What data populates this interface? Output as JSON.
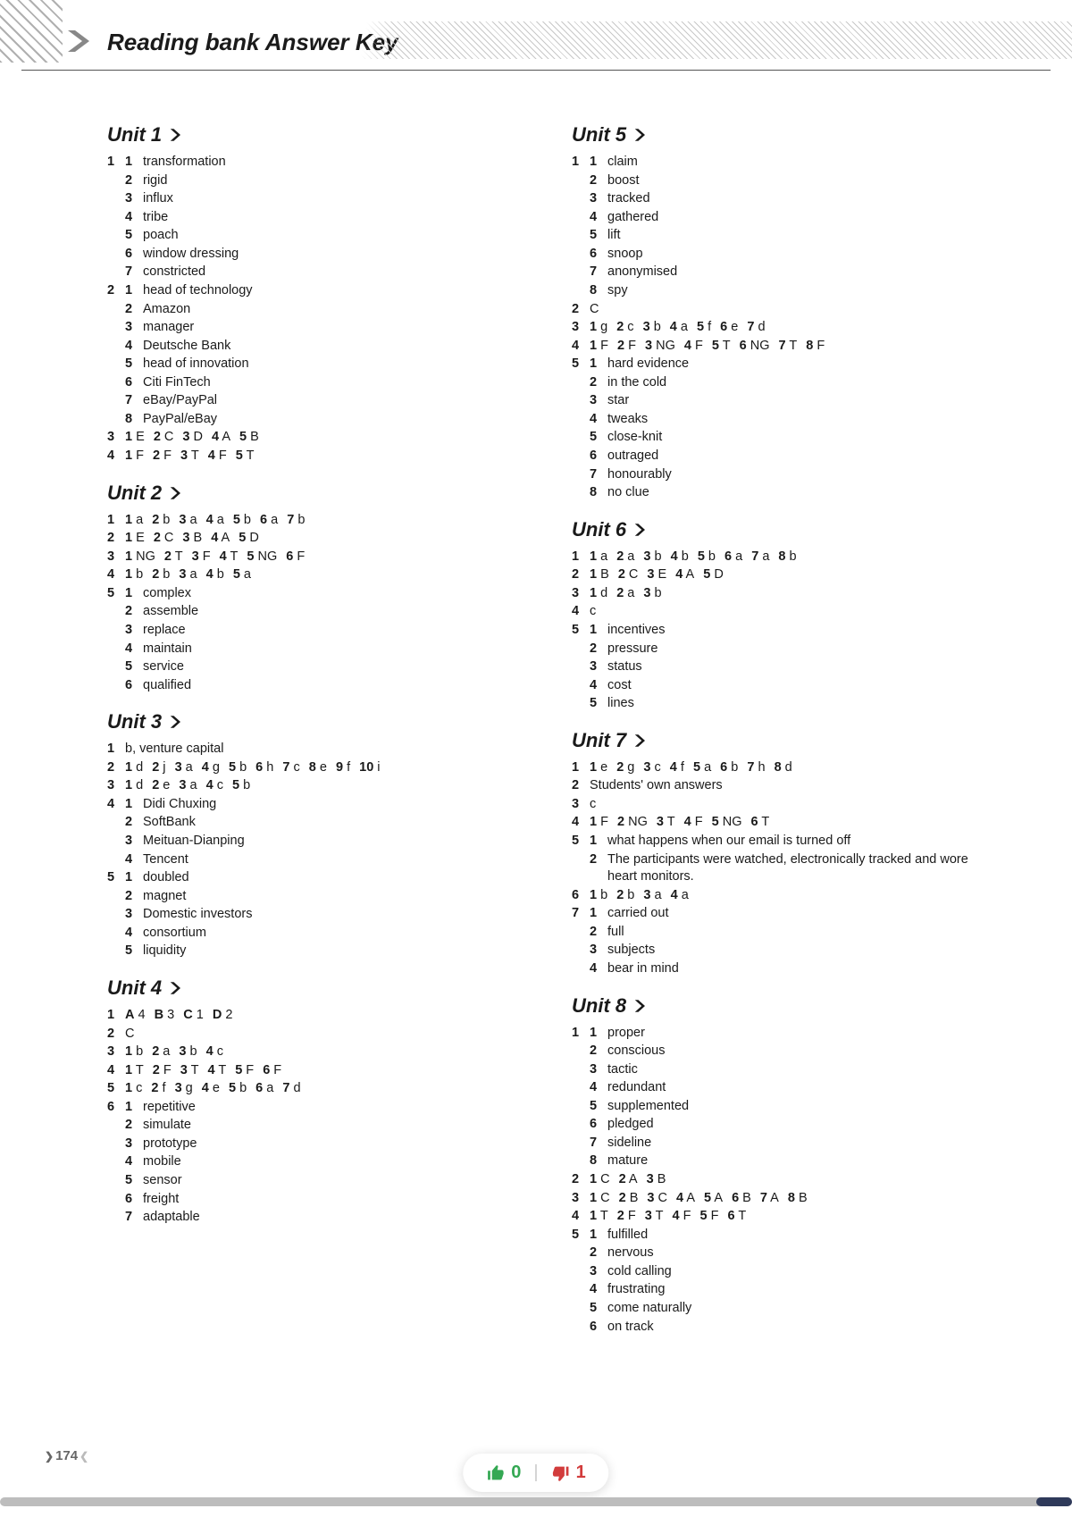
{
  "header": {
    "title": "Reading bank  Answer Key"
  },
  "pageNumber": "174",
  "floating": {
    "up": "0",
    "down": "1"
  },
  "colors": {
    "headingText": "#1a1a1a",
    "upGreen": "#34a853",
    "downRed": "#d23c3c"
  },
  "leftUnits": [
    {
      "title": "Unit 1",
      "items": [
        {
          "type": "sub",
          "q": "1",
          "rows": [
            [
              "1",
              "transformation"
            ],
            [
              "2",
              "rigid"
            ],
            [
              "3",
              "influx"
            ],
            [
              "4",
              "tribe"
            ],
            [
              "5",
              "poach"
            ],
            [
              "6",
              "window dressing"
            ],
            [
              "7",
              "constricted"
            ]
          ]
        },
        {
          "type": "sub",
          "q": "2",
          "rows": [
            [
              "1",
              "head of technology"
            ],
            [
              "2",
              "Amazon"
            ],
            [
              "3",
              "manager"
            ],
            [
              "4",
              "Deutsche Bank"
            ],
            [
              "5",
              "head of innovation"
            ],
            [
              "6",
              "Citi FinTech"
            ],
            [
              "7",
              "eBay/PayPal"
            ],
            [
              "8",
              "PayPal/eBay"
            ]
          ]
        },
        {
          "type": "inline",
          "q": "3",
          "pairs": [
            [
              "1",
              "E"
            ],
            [
              "2",
              "C"
            ],
            [
              "3",
              "D"
            ],
            [
              "4",
              "A"
            ],
            [
              "5",
              "B"
            ]
          ]
        },
        {
          "type": "inline",
          "q": "4",
          "pairs": [
            [
              "1",
              "F"
            ],
            [
              "2",
              "F"
            ],
            [
              "3",
              "T"
            ],
            [
              "4",
              "F"
            ],
            [
              "5",
              "T"
            ]
          ]
        }
      ]
    },
    {
      "title": "Unit 2",
      "items": [
        {
          "type": "inline",
          "q": "1",
          "pairs": [
            [
              "1",
              "a"
            ],
            [
              "2",
              "b"
            ],
            [
              "3",
              "a"
            ],
            [
              "4",
              "a"
            ],
            [
              "5",
              "b"
            ],
            [
              "6",
              "a"
            ],
            [
              "7",
              "b"
            ]
          ]
        },
        {
          "type": "inline",
          "q": "2",
          "pairs": [
            [
              "1",
              "E"
            ],
            [
              "2",
              "C"
            ],
            [
              "3",
              "B"
            ],
            [
              "4",
              "A"
            ],
            [
              "5",
              "D"
            ]
          ]
        },
        {
          "type": "inline",
          "q": "3",
          "pairs": [
            [
              "1",
              "NG"
            ],
            [
              "2",
              "T"
            ],
            [
              "3",
              "F"
            ],
            [
              "4",
              "T"
            ],
            [
              "5",
              "NG"
            ],
            [
              "6",
              "F"
            ]
          ]
        },
        {
          "type": "inline",
          "q": "4",
          "pairs": [
            [
              "1",
              "b"
            ],
            [
              "2",
              "b"
            ],
            [
              "3",
              "a"
            ],
            [
              "4",
              "b"
            ],
            [
              "5",
              "a"
            ]
          ]
        },
        {
          "type": "sub",
          "q": "5",
          "rows": [
            [
              "1",
              "complex"
            ],
            [
              "2",
              "assemble"
            ],
            [
              "3",
              "replace"
            ],
            [
              "4",
              "maintain"
            ],
            [
              "5",
              "service"
            ],
            [
              "6",
              "qualified"
            ]
          ]
        }
      ]
    },
    {
      "title": "Unit 3",
      "items": [
        {
          "type": "single",
          "q": "1",
          "text": "b, venture capital"
        },
        {
          "type": "inline",
          "q": "2",
          "pairs": [
            [
              "1",
              "d"
            ],
            [
              "2",
              "j"
            ],
            [
              "3",
              "a"
            ],
            [
              "4",
              "g"
            ],
            [
              "5",
              "b"
            ],
            [
              "6",
              "h"
            ],
            [
              "7",
              "c"
            ],
            [
              "8",
              "e"
            ],
            [
              "9",
              "f"
            ],
            [
              "10",
              "i"
            ]
          ]
        },
        {
          "type": "inline",
          "q": "3",
          "pairs": [
            [
              "1",
              "d"
            ],
            [
              "2",
              "e"
            ],
            [
              "3",
              "a"
            ],
            [
              "4",
              "c"
            ],
            [
              "5",
              "b"
            ]
          ]
        },
        {
          "type": "sub",
          "q": "4",
          "rows": [
            [
              "1",
              "Didi Chuxing"
            ],
            [
              "2",
              "SoftBank"
            ],
            [
              "3",
              "Meituan-Dianping"
            ],
            [
              "4",
              "Tencent"
            ]
          ]
        },
        {
          "type": "sub",
          "q": "5",
          "rows": [
            [
              "1",
              "doubled"
            ],
            [
              "2",
              "magnet"
            ],
            [
              "3",
              "Domestic investors"
            ],
            [
              "4",
              "consortium"
            ],
            [
              "5",
              "liquidity"
            ]
          ]
        }
      ]
    },
    {
      "title": "Unit 4",
      "items": [
        {
          "type": "inline",
          "q": "1",
          "pairs": [
            [
              "A",
              "4"
            ],
            [
              "B",
              "3"
            ],
            [
              "C",
              "1"
            ],
            [
              "D",
              "2"
            ]
          ]
        },
        {
          "type": "single",
          "q": "2",
          "text": "C"
        },
        {
          "type": "inline",
          "q": "3",
          "pairs": [
            [
              "1",
              "b"
            ],
            [
              "2",
              "a"
            ],
            [
              "3",
              "b"
            ],
            [
              "4",
              "c"
            ]
          ]
        },
        {
          "type": "inline",
          "q": "4",
          "pairs": [
            [
              "1",
              "T"
            ],
            [
              "2",
              "F"
            ],
            [
              "3",
              "T"
            ],
            [
              "4",
              "T"
            ],
            [
              "5",
              "F"
            ],
            [
              "6",
              "F"
            ]
          ]
        },
        {
          "type": "inline",
          "q": "5",
          "pairs": [
            [
              "1",
              "c"
            ],
            [
              "2",
              "f"
            ],
            [
              "3",
              "g"
            ],
            [
              "4",
              "e"
            ],
            [
              "5",
              "b"
            ],
            [
              "6",
              "a"
            ],
            [
              "7",
              "d"
            ]
          ]
        },
        {
          "type": "sub",
          "q": "6",
          "rows": [
            [
              "1",
              "repetitive"
            ],
            [
              "2",
              "simulate"
            ],
            [
              "3",
              "prototype"
            ],
            [
              "4",
              "mobile"
            ],
            [
              "5",
              "sensor"
            ],
            [
              "6",
              "freight"
            ],
            [
              "7",
              "adaptable"
            ]
          ]
        }
      ]
    }
  ],
  "rightUnits": [
    {
      "title": "Unit 5",
      "items": [
        {
          "type": "sub",
          "q": "1",
          "rows": [
            [
              "1",
              "claim"
            ],
            [
              "2",
              "boost"
            ],
            [
              "3",
              "tracked"
            ],
            [
              "4",
              "gathered"
            ],
            [
              "5",
              "lift"
            ],
            [
              "6",
              "snoop"
            ],
            [
              "7",
              "anonymised"
            ],
            [
              "8",
              "spy"
            ]
          ]
        },
        {
          "type": "single",
          "q": "2",
          "text": "C"
        },
        {
          "type": "inline",
          "q": "3",
          "pairs": [
            [
              "1",
              "g"
            ],
            [
              "2",
              "c"
            ],
            [
              "3",
              "b"
            ],
            [
              "4",
              "a"
            ],
            [
              "5",
              "f"
            ],
            [
              "6",
              "e"
            ],
            [
              "7",
              "d"
            ]
          ]
        },
        {
          "type": "inline",
          "q": "4",
          "pairs": [
            [
              "1",
              "F"
            ],
            [
              "2",
              "F"
            ],
            [
              "3",
              "NG"
            ],
            [
              "4",
              "F"
            ],
            [
              "5",
              "T"
            ],
            [
              "6",
              "NG"
            ],
            [
              "7",
              "T"
            ],
            [
              "8",
              "F"
            ]
          ]
        },
        {
          "type": "sub",
          "q": "5",
          "rows": [
            [
              "1",
              "hard evidence"
            ],
            [
              "2",
              "in the cold"
            ],
            [
              "3",
              "star"
            ],
            [
              "4",
              "tweaks"
            ],
            [
              "5",
              "close-knit"
            ],
            [
              "6",
              "outraged"
            ],
            [
              "7",
              "honourably"
            ],
            [
              "8",
              "no clue"
            ]
          ]
        }
      ]
    },
    {
      "title": "Unit 6",
      "items": [
        {
          "type": "inline",
          "q": "1",
          "pairs": [
            [
              "1",
              "a"
            ],
            [
              "2",
              "a"
            ],
            [
              "3",
              "b"
            ],
            [
              "4",
              "b"
            ],
            [
              "5",
              "b"
            ],
            [
              "6",
              "a"
            ],
            [
              "7",
              "a"
            ],
            [
              "8",
              "b"
            ]
          ]
        },
        {
          "type": "inline",
          "q": "2",
          "pairs": [
            [
              "1",
              "B"
            ],
            [
              "2",
              "C"
            ],
            [
              "3",
              "E"
            ],
            [
              "4",
              "A"
            ],
            [
              "5",
              "D"
            ]
          ]
        },
        {
          "type": "inline",
          "q": "3",
          "pairs": [
            [
              "1",
              "d"
            ],
            [
              "2",
              "a"
            ],
            [
              "3",
              "b"
            ]
          ]
        },
        {
          "type": "single",
          "q": "4",
          "text": "c"
        },
        {
          "type": "sub",
          "q": "5",
          "rows": [
            [
              "1",
              "incentives"
            ],
            [
              "2",
              "pressure"
            ],
            [
              "3",
              "status"
            ],
            [
              "4",
              "cost"
            ],
            [
              "5",
              "lines"
            ]
          ]
        }
      ]
    },
    {
      "title": "Unit 7",
      "items": [
        {
          "type": "inline",
          "q": "1",
          "pairs": [
            [
              "1",
              "e"
            ],
            [
              "2",
              "g"
            ],
            [
              "3",
              "c"
            ],
            [
              "4",
              "f"
            ],
            [
              "5",
              "a"
            ],
            [
              "6",
              "b"
            ],
            [
              "7",
              "h"
            ],
            [
              "8",
              "d"
            ]
          ]
        },
        {
          "type": "single",
          "q": "2",
          "text": "Students' own answers"
        },
        {
          "type": "single",
          "q": "3",
          "text": "c"
        },
        {
          "type": "inline",
          "q": "4",
          "pairs": [
            [
              "1",
              "F"
            ],
            [
              "2",
              "NG"
            ],
            [
              "3",
              "T"
            ],
            [
              "4",
              "F"
            ],
            [
              "5",
              "NG"
            ],
            [
              "6",
              "T"
            ]
          ]
        },
        {
          "type": "sub",
          "q": "5",
          "rows": [
            [
              "1",
              "what happens when our email is turned off"
            ],
            [
              "2",
              "The participants were watched, electronically tracked and wore heart monitors."
            ]
          ]
        },
        {
          "type": "inline",
          "q": "6",
          "pairs": [
            [
              "1",
              "b"
            ],
            [
              "2",
              "b"
            ],
            [
              "3",
              "a"
            ],
            [
              "4",
              "a"
            ]
          ]
        },
        {
          "type": "sub",
          "q": "7",
          "rows": [
            [
              "1",
              "carried out"
            ],
            [
              "2",
              "full"
            ],
            [
              "3",
              "subjects"
            ],
            [
              "4",
              "bear in mind"
            ]
          ]
        }
      ]
    },
    {
      "title": "Unit 8",
      "items": [
        {
          "type": "sub",
          "q": "1",
          "rows": [
            [
              "1",
              "proper"
            ],
            [
              "2",
              "conscious"
            ],
            [
              "3",
              "tactic"
            ],
            [
              "4",
              "redundant"
            ],
            [
              "5",
              "supplemented"
            ],
            [
              "6",
              "pledged"
            ],
            [
              "7",
              "sideline"
            ],
            [
              "8",
              "mature"
            ]
          ]
        },
        {
          "type": "inline",
          "q": "2",
          "pairs": [
            [
              "1",
              "C"
            ],
            [
              "2",
              "A"
            ],
            [
              "3",
              "B"
            ]
          ]
        },
        {
          "type": "inline",
          "q": "3",
          "pairs": [
            [
              "1",
              "C"
            ],
            [
              "2",
              "B"
            ],
            [
              "3",
              "C"
            ],
            [
              "4",
              "A"
            ],
            [
              "5",
              "A"
            ],
            [
              "6",
              "B"
            ],
            [
              "7",
              "A"
            ],
            [
              "8",
              "B"
            ]
          ]
        },
        {
          "type": "inline",
          "q": "4",
          "pairs": [
            [
              "1",
              "T"
            ],
            [
              "2",
              "F"
            ],
            [
              "3",
              "T"
            ],
            [
              "4",
              "F"
            ],
            [
              "5",
              "F"
            ],
            [
              "6",
              "T"
            ]
          ]
        },
        {
          "type": "sub",
          "q": "5",
          "rows": [
            [
              "1",
              "fulfilled"
            ],
            [
              "2",
              "nervous"
            ],
            [
              "3",
              "cold calling"
            ],
            [
              "4",
              "frustrating"
            ],
            [
              "5",
              "come naturally"
            ],
            [
              "6",
              "on track"
            ]
          ]
        }
      ]
    }
  ]
}
